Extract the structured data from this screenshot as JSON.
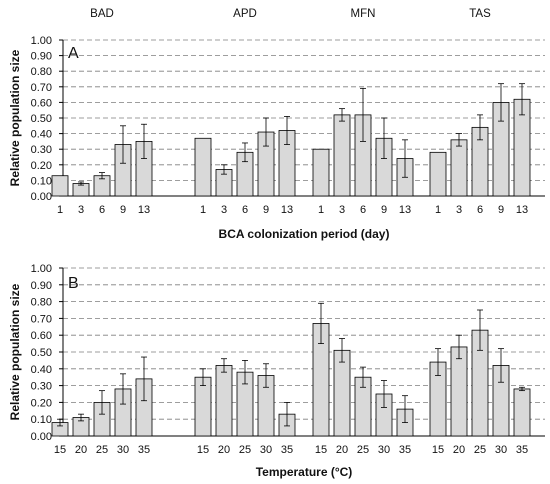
{
  "chart_data": [
    {
      "type": "bar",
      "panel_label": "A",
      "groups": [
        "BAD",
        "APD",
        "MFN",
        "TAS"
      ],
      "categories": [
        "1",
        "3",
        "6",
        "9",
        "13"
      ],
      "xlabel": "BCA colonization period (day)",
      "ylabel": "Relative population size",
      "ylim": [
        0,
        1
      ],
      "yticks": [
        "0.00",
        "0.10",
        "0.20",
        "0.30",
        "0.40",
        "0.50",
        "0.60",
        "0.70",
        "0.80",
        "0.90",
        "1.00"
      ],
      "grid": "horizontal dashed",
      "bar_color": "#d9d9d9",
      "series": [
        {
          "group": "BAD",
          "values": [
            0.13,
            0.08,
            0.13,
            0.33,
            0.35
          ],
          "errors": [
            0,
            0.01,
            0.02,
            0.12,
            0.11
          ]
        },
        {
          "group": "APD",
          "values": [
            0.37,
            0.17,
            0.28,
            0.41,
            0.42
          ],
          "errors": [
            0,
            0.03,
            0.06,
            0.09,
            0.09
          ]
        },
        {
          "group": "MFN",
          "values": [
            0.3,
            0.52,
            0.52,
            0.37,
            0.24
          ],
          "errors": [
            0,
            0.04,
            0.17,
            0.13,
            0.12
          ]
        },
        {
          "group": "TAS",
          "values": [
            0.28,
            0.36,
            0.44,
            0.6,
            0.62
          ],
          "errors": [
            0,
            0.04,
            0.08,
            0.12,
            0.1
          ]
        }
      ]
    },
    {
      "type": "bar",
      "panel_label": "B",
      "groups": [
        "BAD",
        "APD",
        "MFN",
        "TAS"
      ],
      "categories": [
        "15",
        "20",
        "25",
        "30",
        "35"
      ],
      "xlabel": "Temperature (°C)",
      "ylabel": "Relative population size",
      "ylim": [
        0,
        1
      ],
      "yticks": [
        "0.00",
        "0.10",
        "0.20",
        "0.30",
        "0.40",
        "0.50",
        "0.60",
        "0.70",
        "0.80",
        "0.90",
        "1.00"
      ],
      "grid": "horizontal dashed",
      "bar_color": "#d9d9d9",
      "series": [
        {
          "group": "BAD",
          "values": [
            0.08,
            0.11,
            0.2,
            0.28,
            0.34
          ],
          "errors": [
            0.02,
            0.02,
            0.07,
            0.09,
            0.13
          ]
        },
        {
          "group": "APD",
          "values": [
            0.35,
            0.42,
            0.38,
            0.36,
            0.13
          ],
          "errors": [
            0.05,
            0.04,
            0.07,
            0.07,
            0.07
          ]
        },
        {
          "group": "MFN",
          "values": [
            0.67,
            0.51,
            0.35,
            0.25,
            0.16
          ],
          "errors": [
            0.12,
            0.07,
            0.06,
            0.08,
            0.08
          ]
        },
        {
          "group": "TAS",
          "values": [
            0.44,
            0.53,
            0.63,
            0.42,
            0.28
          ],
          "errors": [
            0.08,
            0.07,
            0.12,
            0.1,
            0.01
          ]
        }
      ]
    }
  ]
}
